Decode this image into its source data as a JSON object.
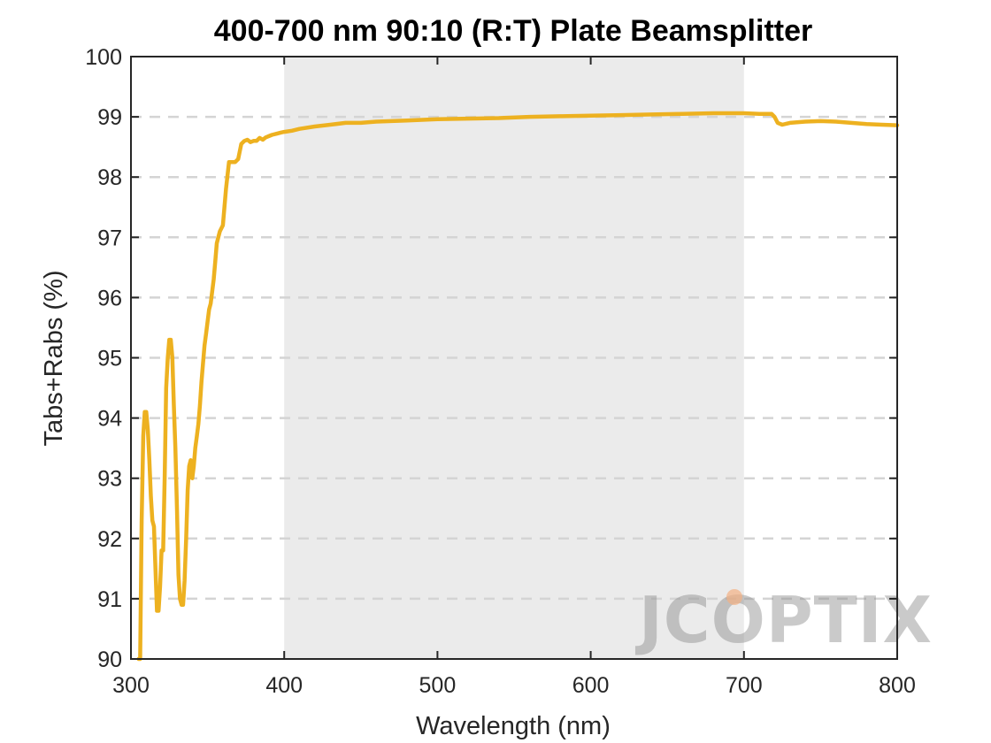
{
  "chart_data": {
    "type": "line",
    "title": "400-700 nm 90:10 (R:T) Plate Beamsplitter",
    "xlabel": "Wavelength (nm)",
    "ylabel": "Tabs+Rabs (%)",
    "xlim": [
      300,
      800
    ],
    "ylim": [
      90,
      100
    ],
    "xticks": [
      "300",
      "400",
      "500",
      "600",
      "700",
      "800"
    ],
    "yticks": [
      "90",
      "91",
      "92",
      "93",
      "94",
      "95",
      "96",
      "97",
      "98",
      "99",
      "100"
    ],
    "grid": "horizontal dashed",
    "shaded_band": [
      400,
      700
    ],
    "series": [
      {
        "color": "#EDB120",
        "x": [
          305,
          306,
          307,
          308,
          309,
          310,
          311,
          312,
          313,
          314,
          315,
          316,
          317,
          318,
          319,
          320,
          321,
          322,
          323,
          324,
          325,
          326,
          327,
          328,
          329,
          330,
          331,
          332,
          333,
          334,
          335,
          336,
          337,
          338,
          339,
          340,
          341,
          342,
          343,
          344,
          345,
          346,
          347,
          348,
          349,
          350,
          351,
          352,
          353,
          354,
          355,
          356,
          357,
          358,
          359,
          360,
          362,
          364,
          366,
          368,
          370,
          372,
          374,
          376,
          378,
          380,
          382,
          384,
          386,
          388,
          390,
          392,
          395,
          398,
          400,
          405,
          410,
          420,
          430,
          440,
          450,
          460,
          470,
          480,
          490,
          500,
          520,
          540,
          560,
          580,
          600,
          620,
          640,
          660,
          680,
          700,
          710,
          718,
          720,
          722,
          725,
          730,
          740,
          750,
          760,
          770,
          780,
          790,
          800
        ],
        "y": [
          90.0,
          90.0,
          92.3,
          93.7,
          94.1,
          94.1,
          93.8,
          93.3,
          92.7,
          92.3,
          92.2,
          91.5,
          90.8,
          90.8,
          91.2,
          91.8,
          91.8,
          93.0,
          94.5,
          95.0,
          95.3,
          95.3,
          95.0,
          94.2,
          93.5,
          92.5,
          91.4,
          91.0,
          90.9,
          90.9,
          91.3,
          92.0,
          92.8,
          93.2,
          93.3,
          93.0,
          93.2,
          93.5,
          93.7,
          93.9,
          94.2,
          94.6,
          94.9,
          95.2,
          95.4,
          95.6,
          95.8,
          95.9,
          96.1,
          96.3,
          96.6,
          96.9,
          97.0,
          97.1,
          97.15,
          97.2,
          97.8,
          98.25,
          98.25,
          98.25,
          98.3,
          98.55,
          98.6,
          98.62,
          98.58,
          98.6,
          98.6,
          98.65,
          98.62,
          98.66,
          98.68,
          98.7,
          98.72,
          98.74,
          98.75,
          98.77,
          98.8,
          98.84,
          98.87,
          98.9,
          98.9,
          98.92,
          98.93,
          98.94,
          98.95,
          98.96,
          98.97,
          98.98,
          99.0,
          99.01,
          99.02,
          99.03,
          99.04,
          99.05,
          99.06,
          99.06,
          99.05,
          99.05,
          99.0,
          98.9,
          98.87,
          98.9,
          98.92,
          98.93,
          98.92,
          98.9,
          98.88,
          98.87,
          98.86
        ]
      }
    ]
  },
  "watermark": {
    "text": "JCOPTIX",
    "accent_color": "#f4b183"
  }
}
